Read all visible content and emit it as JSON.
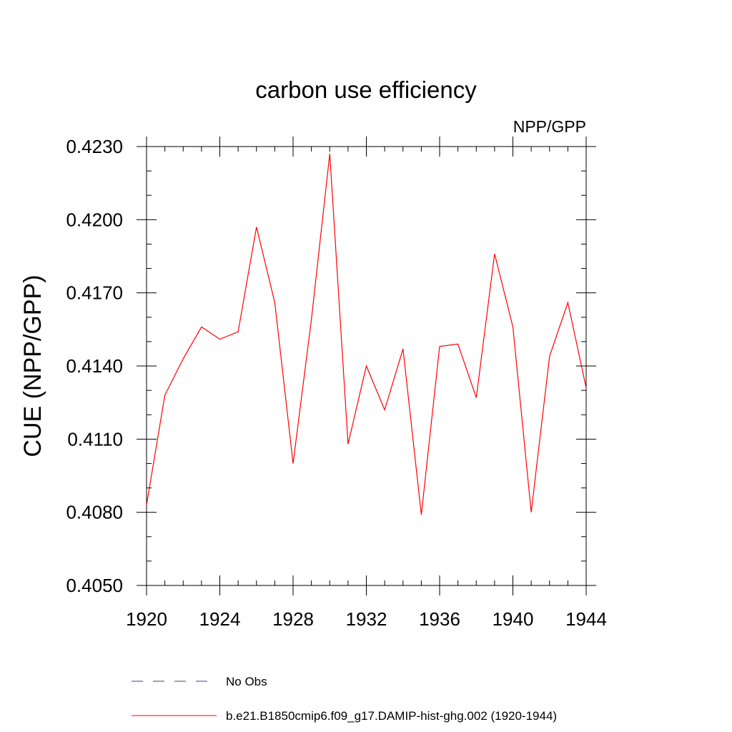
{
  "chart_data": {
    "type": "line",
    "title": "carbon use efficiency",
    "subtitle": "NPP/GPP",
    "ylabel": "CUE  (NPP/GPP)",
    "xlabel": "",
    "xlim": [
      1920,
      1944
    ],
    "ylim": [
      0.405,
      0.423
    ],
    "xticks": [
      1920,
      1924,
      1928,
      1932,
      1936,
      1940,
      1944
    ],
    "xtick_labels": [
      "1920",
      "1924",
      "1928",
      "1932",
      "1936",
      "1940",
      "1944"
    ],
    "yticks": [
      0.405,
      0.408,
      0.411,
      0.414,
      0.417,
      0.42,
      0.423
    ],
    "ytick_labels": [
      "0.4050",
      "0.4080",
      "0.4110",
      "0.4140",
      "0.4170",
      "0.4200",
      "0.4230"
    ],
    "grid": false,
    "legend_position": "bottom",
    "series": [
      {
        "name": "No Obs",
        "color": "#3a3aa0",
        "dash": true,
        "x": [],
        "values": []
      },
      {
        "name": "b.e21.B1850cmip6.f09_g17.DAMIP-hist-ghg.002 (1920-1944)",
        "color": "#ff0000",
        "dash": false,
        "x": [
          1920,
          1921,
          1922,
          1923,
          1924,
          1925,
          1926,
          1927,
          1928,
          1929,
          1930,
          1931,
          1932,
          1933,
          1934,
          1935,
          1936,
          1937,
          1938,
          1939,
          1940,
          1941,
          1942,
          1943,
          1944
        ],
        "values": [
          0.4083,
          0.4128,
          0.4143,
          0.4156,
          0.4151,
          0.4154,
          0.4197,
          0.4166,
          0.41,
          0.4159,
          0.4227,
          0.4108,
          0.414,
          0.4122,
          0.4147,
          0.4079,
          0.4148,
          0.4149,
          0.4127,
          0.4186,
          0.4156,
          0.408,
          0.4144,
          0.4166,
          0.4131
        ]
      }
    ]
  }
}
